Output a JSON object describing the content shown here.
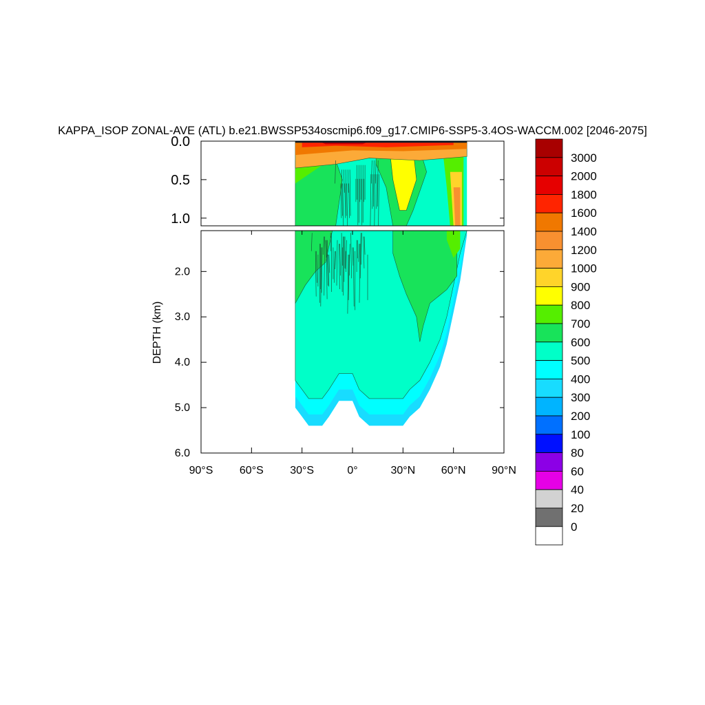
{
  "chart_data": {
    "type": "heatmap",
    "title": "KAPPA_ISOP ZONAL-AVE (ATL) b.e21.BWSSP534oscmip6.f09_g17.CMIP6-SSP5-3.4OS-WACCM.002 [2046-2075]",
    "ylabel": "DEPTH (km)",
    "xlabel": "",
    "x_ticks": [
      "90°S",
      "60°S",
      "30°S",
      "0°",
      "30°N",
      "60°N",
      "90°N"
    ],
    "x_tick_values": [
      -90,
      -60,
      -30,
      0,
      30,
      60,
      90
    ],
    "xlim": [
      -90,
      90
    ],
    "panels": [
      {
        "name": "upper",
        "ylim": [
          0.0,
          1.1
        ],
        "y_ticks": [
          "0.0",
          "0.5",
          "1.0"
        ],
        "y_tick_values": [
          0.0,
          0.5,
          1.0
        ]
      },
      {
        "name": "lower",
        "ylim": [
          1.1,
          6.0
        ],
        "y_ticks": [
          "2.0",
          "3.0",
          "4.0",
          "5.0",
          "6.0"
        ],
        "y_tick_values": [
          2.0,
          3.0,
          4.0,
          5.0,
          6.0
        ]
      }
    ],
    "colorbar": {
      "labels": [
        "3000",
        "2000",
        "1800",
        "1600",
        "1400",
        "1200",
        "1000",
        "900",
        "800",
        "700",
        "600",
        "500",
        "400",
        "300",
        "200",
        "100",
        "80",
        "60",
        "40",
        "20",
        "0"
      ],
      "colors": [
        "#a80000",
        "#cc0000",
        "#e60000",
        "#ff2400",
        "#f07800",
        "#f89030",
        "#fcaa38",
        "#ffd42a",
        "#ffff00",
        "#55ee00",
        "#18e35a",
        "#00ffc8",
        "#00ffff",
        "#18dcff",
        "#00b4ff",
        "#0070ff",
        "#0010ff",
        "#8c00e6",
        "#e600e6",
        "#d2d2d2",
        "#707070",
        "#ffffff"
      ]
    },
    "field": {
      "atlantic_lat_range": [
        -34,
        68
      ],
      "bottom_depth_km": [
        [
          -34,
          5.0
        ],
        [
          -30,
          5.2
        ],
        [
          -26,
          5.4
        ],
        [
          -18,
          5.4
        ],
        [
          -14,
          5.2
        ],
        [
          -8,
          4.85
        ],
        [
          0,
          4.85
        ],
        [
          4,
          5.2
        ],
        [
          10,
          5.4
        ],
        [
          20,
          5.4
        ],
        [
          30,
          5.4
        ],
        [
          34,
          5.2
        ],
        [
          40,
          5.0
        ],
        [
          46,
          4.6
        ],
        [
          52,
          4.1
        ],
        [
          56,
          3.6
        ],
        [
          60,
          2.9
        ],
        [
          64,
          2.2
        ],
        [
          68,
          1.2
        ]
      ]
    }
  }
}
